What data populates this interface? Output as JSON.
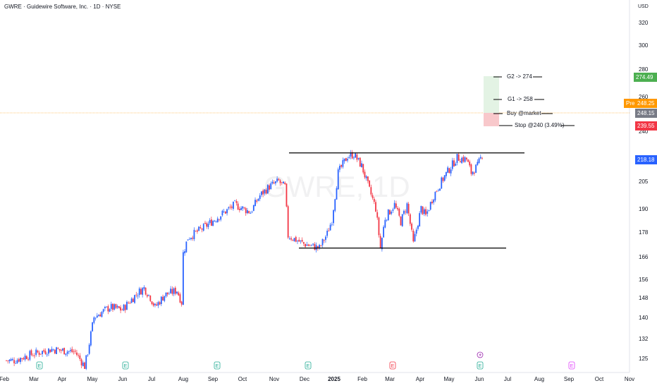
{
  "header": {
    "title": "GWRE · Guidewire Software, Inc. · 1D · NYSE"
  },
  "watermark": "GWRE, 1D",
  "currency": "USD",
  "price_tags": {
    "target2": {
      "value": "274.49",
      "color": "#4caf50"
    },
    "pre": {
      "label": "Pre",
      "value": "248.25",
      "color": "#ff9800"
    },
    "last": {
      "value": "248.15",
      "color": "#787b86"
    },
    "stop": {
      "value": "239.55",
      "color": "#f23645"
    },
    "current": {
      "value": "218.18",
      "color": "#2962ff"
    }
  },
  "annotations": {
    "g2": "G2 -> 274",
    "g1": "G1 -> 258",
    "buy": "Buy @market",
    "stop": "Stop @240 (3.49%)"
  },
  "event_icons": [
    "E",
    "E",
    "E",
    "E",
    "E",
    "E",
    "E"
  ],
  "chart_data": {
    "type": "candlestick",
    "title": "GWRE · Guidewire Software, Inc. · 1D · NYSE",
    "y_axis": {
      "scale": "log",
      "ticks": [
        125,
        132,
        140,
        148,
        156,
        166,
        178,
        190,
        205,
        220,
        240,
        260,
        280,
        300,
        320
      ]
    },
    "x_axis": {
      "ticks": [
        "Feb",
        "Mar",
        "Apr",
        "May",
        "Jun",
        "Jul",
        "Aug",
        "Sep",
        "Oct",
        "Nov",
        "Dec",
        "2025",
        "Feb",
        "Mar",
        "Apr",
        "May",
        "Jun",
        "Jul",
        "Aug",
        "Sep",
        "Oct",
        "Nov"
      ]
    },
    "levels": {
      "resistance": 222,
      "support": 170,
      "target2": 274,
      "target1": 258,
      "entry": 248.15,
      "stop": 240
    },
    "colors": {
      "up": "#2962ff",
      "down": "#f23645"
    },
    "segments": [
      {
        "from": 124,
        "to": 124,
        "steps": 6
      },
      {
        "from": 124,
        "to": 126,
        "steps": 10
      },
      {
        "from": 126,
        "to": 128,
        "steps": 14
      },
      {
        "from": 128,
        "to": 127,
        "steps": 15
      },
      {
        "from": 127,
        "to": 122,
        "steps": 6
      },
      {
        "from": 122,
        "to": 127,
        "steps": 2
      },
      {
        "from": 127,
        "to": 140,
        "steps": 4
      },
      {
        "from": 140,
        "to": 144,
        "steps": 10
      },
      {
        "from": 144,
        "to": 143,
        "steps": 8
      },
      {
        "from": 143,
        "to": 150,
        "steps": 10
      },
      {
        "from": 150,
        "to": 152,
        "steps": 4
      },
      {
        "from": 152,
        "to": 148,
        "steps": 4
      },
      {
        "from": 148,
        "to": 144,
        "steps": 3
      },
      {
        "from": 144,
        "to": 149,
        "steps": 6
      },
      {
        "from": 149,
        "to": 151,
        "steps": 8
      },
      {
        "from": 151,
        "to": 146,
        "steps": 3
      },
      {
        "from": 165,
        "to": 175,
        "steps": 4
      },
      {
        "from": 175,
        "to": 180,
        "steps": 10
      },
      {
        "from": 180,
        "to": 186,
        "steps": 10
      },
      {
        "from": 186,
        "to": 192,
        "steps": 10
      },
      {
        "from": 192,
        "to": 188,
        "steps": 10
      },
      {
        "from": 188,
        "to": 197,
        "steps": 6
      },
      {
        "from": 197,
        "to": 202,
        "steps": 6
      },
      {
        "from": 202,
        "to": 205,
        "steps": 6
      },
      {
        "from": 205,
        "to": 203,
        "steps": 2
      },
      {
        "from": 203,
        "to": 202,
        "steps": 2
      },
      {
        "from": 202,
        "to": 176,
        "steps": 2
      },
      {
        "from": 176,
        "to": 172,
        "steps": 10
      },
      {
        "from": 172,
        "to": 170,
        "steps": 10
      },
      {
        "from": 170,
        "to": 177,
        "steps": 5
      },
      {
        "from": 177,
        "to": 184,
        "steps": 3
      },
      {
        "from": 184,
        "to": 210,
        "steps": 4
      },
      {
        "from": 210,
        "to": 220,
        "steps": 6
      },
      {
        "from": 220,
        "to": 221,
        "steps": 4
      },
      {
        "from": 221,
        "to": 214,
        "steps": 5
      },
      {
        "from": 214,
        "to": 200,
        "steps": 5
      },
      {
        "from": 200,
        "to": 190,
        "steps": 4
      },
      {
        "from": 190,
        "to": 170,
        "steps": 3
      },
      {
        "from": 170,
        "to": 185,
        "steps": 3
      },
      {
        "from": 185,
        "to": 192,
        "steps": 6
      },
      {
        "from": 192,
        "to": 183,
        "steps": 4
      },
      {
        "from": 183,
        "to": 192,
        "steps": 4
      },
      {
        "from": 192,
        "to": 172,
        "steps": 4
      },
      {
        "from": 172,
        "to": 190,
        "steps": 5
      },
      {
        "from": 190,
        "to": 186,
        "steps": 3
      },
      {
        "from": 186,
        "to": 197,
        "steps": 5
      },
      {
        "from": 197,
        "to": 208,
        "steps": 7
      },
      {
        "from": 208,
        "to": 219,
        "steps": 8
      },
      {
        "from": 219,
        "to": 218,
        "steps": 6
      },
      {
        "from": 218,
        "to": 210,
        "steps": 3
      },
      {
        "from": 210,
        "to": 214,
        "steps": 4
      },
      {
        "from": 214,
        "to": 221,
        "steps": 3
      }
    ]
  }
}
